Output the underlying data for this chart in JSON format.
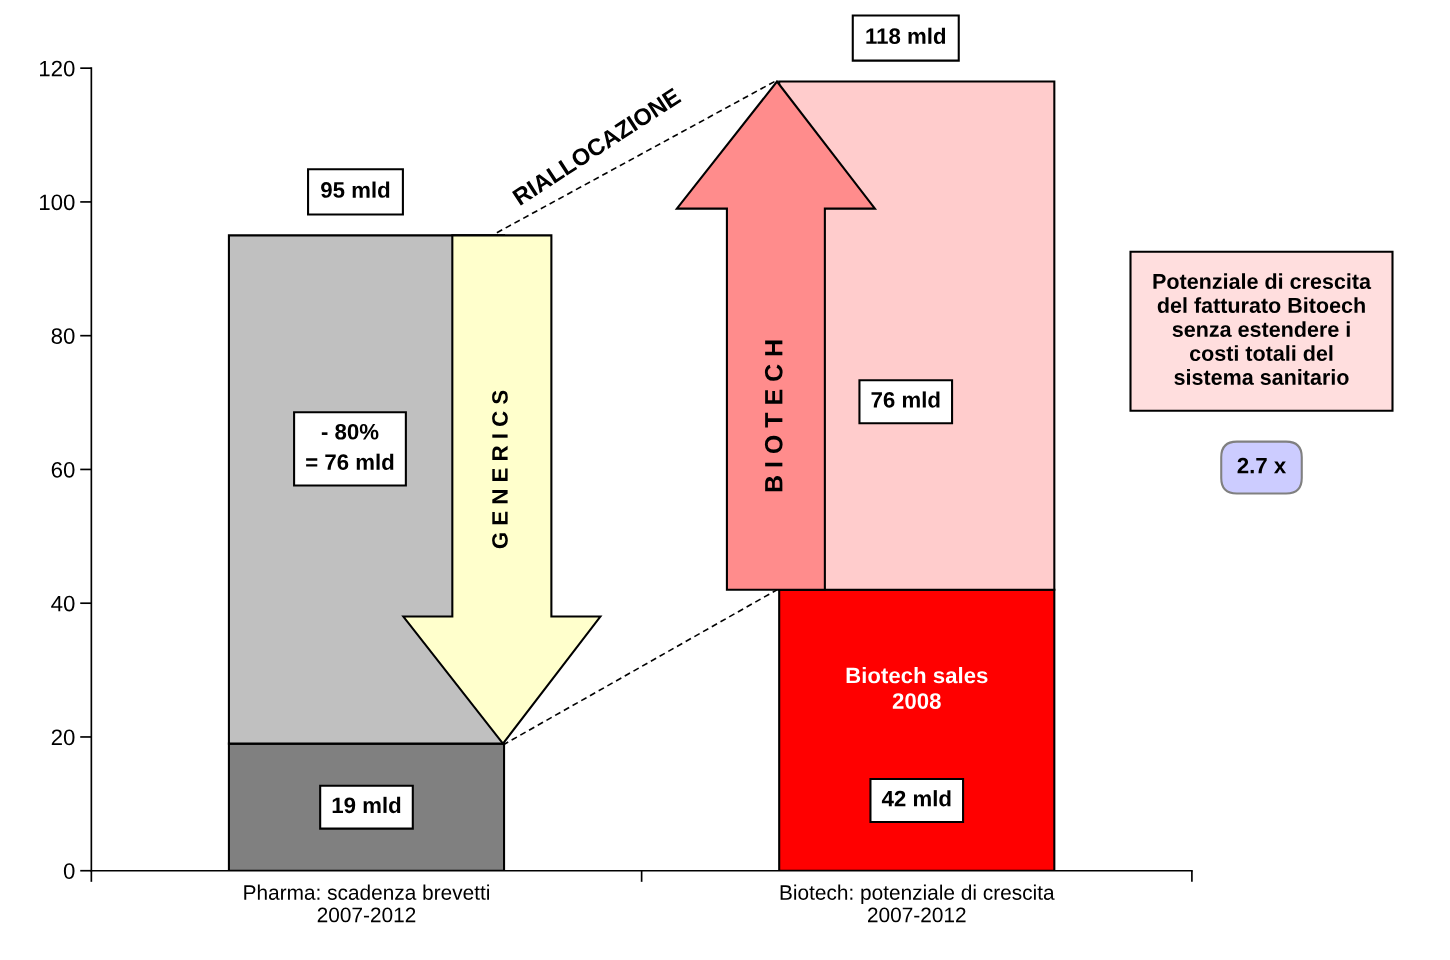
{
  "chart_data": {
    "type": "bar",
    "stacked": true,
    "categories": [
      "Pharma: scadenza brevetti\n2007-2012",
      "Biotech: potenziale di crescita\n2007-2012"
    ],
    "series": [
      {
        "colors": [
          "#808080",
          "#ff0000"
        ],
        "values": [
          19,
          42
        ],
        "value_labels": [
          "19 mld",
          "42 mld"
        ]
      },
      {
        "colors": [
          "#c0c0c0",
          "#ffcccc"
        ],
        "values": [
          76,
          76
        ],
        "value_labels": [
          "- 80%\n= 76 mld",
          "76 mld"
        ]
      }
    ],
    "totals": [
      "95 mld",
      "118 mld"
    ],
    "ylim": [
      0,
      120
    ],
    "yticks": [
      0,
      20,
      40,
      60,
      80,
      100,
      120
    ],
    "grid": false,
    "legend": false,
    "annotations": [
      "RIALLOCAZIONE",
      "G E N E R I C S",
      "B I O T E C H",
      "Biotech sales\n2008",
      "Potenziale di crescita\ndel fatturato Bitoech\nsenza estendere i\ncosti totali del\nsistema sanitario",
      "2.7 x"
    ]
  }
}
